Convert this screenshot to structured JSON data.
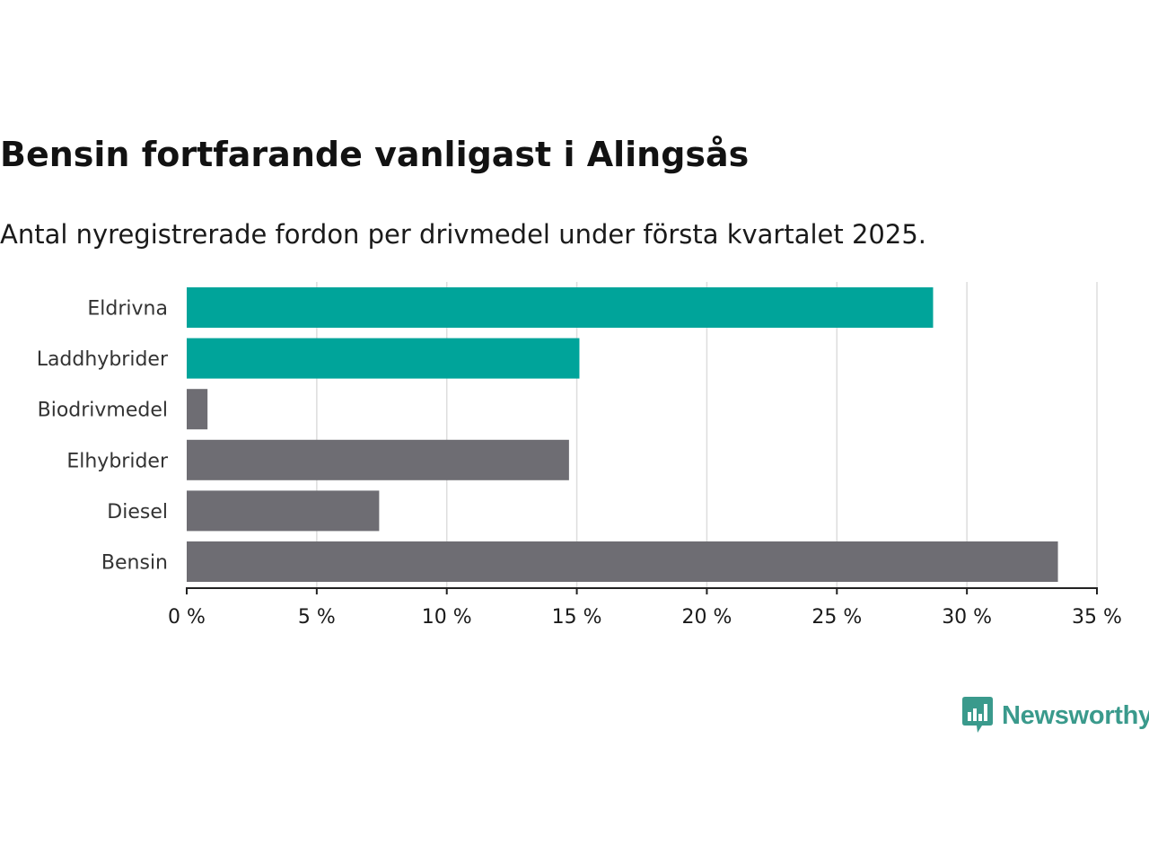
{
  "header": {
    "title": "Bensin fortfarande vanligast i Alingsås",
    "subtitle": "Antal nyregistrerade fordon per drivmedel under första kvartalet 2025."
  },
  "brand": {
    "name": "Newsworthy",
    "color": "#3a9a8c"
  },
  "colors": {
    "highlight": "#00a49a",
    "neutral": "#6e6d73",
    "grid": "#dddddd",
    "axis": "#222222"
  },
  "chart_data": {
    "type": "bar",
    "orientation": "horizontal",
    "categories": [
      "Eldrivna",
      "Laddhybrider",
      "Biodrivmedel",
      "Elhybrider",
      "Diesel",
      "Bensin"
    ],
    "values": [
      28.7,
      15.1,
      0.8,
      14.7,
      7.4,
      33.5
    ],
    "highlighted": [
      true,
      true,
      false,
      false,
      false,
      false
    ],
    "unit": "%",
    "xlim": [
      0,
      35
    ],
    "xticks": [
      0,
      5,
      10,
      15,
      20,
      25,
      30,
      35
    ],
    "xtick_labels": [
      "0 %",
      "5 %",
      "10 %",
      "15 %",
      "20 %",
      "25 %",
      "30 %",
      "35 %"
    ],
    "grid": true,
    "legend": "none"
  }
}
